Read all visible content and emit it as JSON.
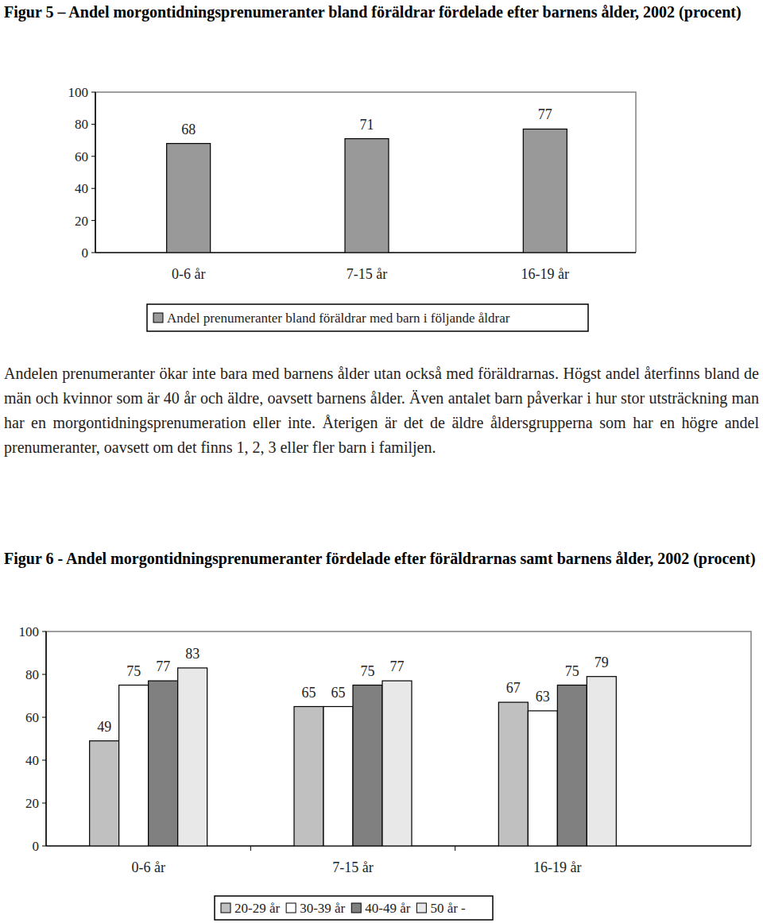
{
  "chart_data": [
    {
      "type": "bar",
      "title": "Figur 5 – Andel morgontidningsprenumeranter bland föräldrar fördelade efter barnens ålder, 2002 (procent)",
      "categories": [
        "0-6 år",
        "7-15 år",
        "16-19 år"
      ],
      "series": [
        {
          "name": "Andel prenumeranter bland föräldrar med barn i följande åldrar",
          "color": "#999999",
          "values": [
            68,
            71,
            77
          ]
        }
      ],
      "ylim": [
        0,
        100
      ],
      "yticks": [
        0,
        20,
        40,
        60,
        80,
        100
      ],
      "grid": false,
      "legend": "bottom",
      "data_labels": true
    },
    {
      "type": "bar",
      "title": "Figur 6 - Andel morgontidningsprenumeranter fördelade efter föräldrarnas samt barnens ålder, 2002 (procent)",
      "categories": [
        "0-6 år",
        "7-15 år",
        "16-19 år"
      ],
      "series": [
        {
          "name": "20-29 år",
          "color": "#c0c0c0",
          "values": [
            49,
            65,
            67
          ]
        },
        {
          "name": "30-39 år",
          "color": "#ffffff",
          "values": [
            75,
            65,
            63
          ]
        },
        {
          "name": "40-49 år",
          "color": "#808080",
          "values": [
            77,
            75,
            75
          ]
        },
        {
          "name": "50 år -",
          "color": "#e8e8e8",
          "values": [
            83,
            77,
            79
          ]
        }
      ],
      "ylim": [
        0,
        100
      ],
      "yticks": [
        0,
        20,
        40,
        60,
        80,
        100
      ],
      "grid": false,
      "legend": "bottom",
      "data_labels": true
    }
  ],
  "paragraph": "Andelen prenumeranter ökar inte bara med barnens ålder utan också med föräldrarnas. Högst andel återfinns bland de män och kvinnor som är 40 år och äldre, oavsett barnens ålder. Även antalet barn påverkar i hur stor utsträckning man har en morgontidningsprenumeration eller inte. Återigen är det de äldre åldersgrupperna som har en högre andel prenumeranter, oavsett om det finns 1, 2, 3 eller fler barn i familjen."
}
